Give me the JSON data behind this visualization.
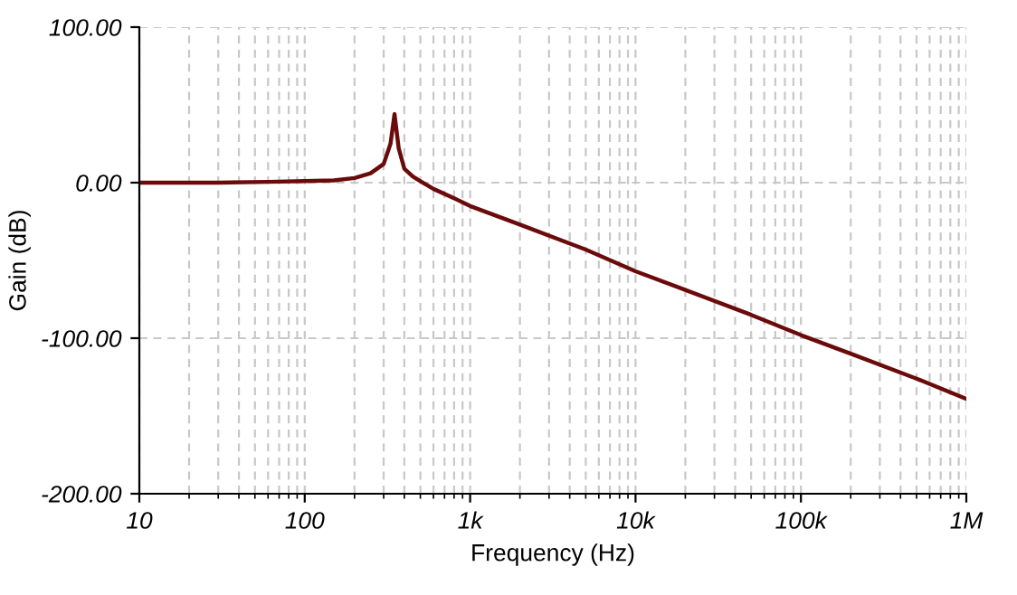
{
  "chart_data": {
    "type": "line",
    "xlabel": "Frequency (Hz)",
    "ylabel": "Gain (dB)",
    "log": "x",
    "grid": true,
    "marker": "none",
    "line_style": "solid",
    "xlim": [
      10,
      1000000
    ],
    "ylim": [
      -200,
      100
    ],
    "xticks": [
      10,
      100,
      {
        "value": 1000,
        "label": "1k"
      },
      {
        "value": 10000,
        "label": "10k"
      },
      {
        "value": 100000,
        "label": "100k"
      },
      {
        "value": 1000000,
        "label": "1M"
      }
    ],
    "yticks": [
      {
        "value": -200,
        "label": "-200.00"
      },
      {
        "value": -100,
        "label": "-100.00"
      },
      {
        "value": 0,
        "label": "0.00"
      },
      {
        "value": 100,
        "label": "100.00"
      }
    ],
    "series": [
      {
        "color": "#6b0a0a",
        "x": [
          10,
          30,
          60,
          100,
          150,
          200,
          250,
          300,
          330,
          349,
          370,
          400,
          450,
          500,
          600,
          800,
          1000,
          2000,
          5000,
          10000,
          20000,
          50000,
          100000,
          200000,
          500000,
          1000000
        ],
        "values": [
          0,
          0,
          0.5,
          1,
          1.5,
          3,
          6,
          12,
          25,
          44,
          22,
          9,
          4,
          1,
          -4,
          -10,
          -15,
          -27,
          -43,
          -57,
          -69,
          -85,
          -98,
          -110,
          -126,
          -139
        ]
      }
    ]
  }
}
